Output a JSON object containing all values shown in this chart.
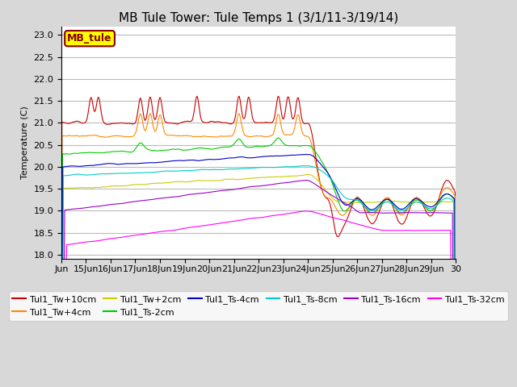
{
  "title": "MB Tule Tower: Tule Temps 1 (3/1/11-3/19/14)",
  "ylabel": "Temperature (C)",
  "ylim": [
    17.9,
    23.2
  ],
  "yticks": [
    18.0,
    18.5,
    19.0,
    19.5,
    20.0,
    20.5,
    21.0,
    21.5,
    22.0,
    22.5,
    23.0
  ],
  "xtick_labels": [
    "Jun",
    "15Jun",
    "16Jun",
    "17Jun",
    "18Jun",
    "19Jun",
    "20Jun",
    "21Jun",
    "22Jun",
    "23Jun",
    "24Jun",
    "25Jun",
    "26Jun",
    "27Jun",
    "28Jun",
    "29Jun",
    "30"
  ],
  "legend_box_label": "MB_tule",
  "legend_box_color": "#ffff00",
  "legend_box_border": "#880000",
  "series": [
    {
      "label": "Tul1_Tw+10cm",
      "color": "#cc0000"
    },
    {
      "label": "Tul1_Tw+4cm",
      "color": "#ff8800"
    },
    {
      "label": "Tul1_Tw+2cm",
      "color": "#cccc00"
    },
    {
      "label": "Tul1_Ts-2cm",
      "color": "#00cc00"
    },
    {
      "label": "Tul1_Ts-4cm",
      "color": "#0000cc"
    },
    {
      "label": "Tul1_Ts-8cm",
      "color": "#00cccc"
    },
    {
      "label": "Tul1_Ts-16cm",
      "color": "#9900cc"
    },
    {
      "label": "Tul1_Ts-32cm",
      "color": "#ff00ff"
    }
  ],
  "bg_color": "#d8d8d8",
  "plot_bg_color": "#ffffff",
  "grid_color": "#bbbbbb",
  "title_fontsize": 11,
  "tick_fontsize": 8,
  "legend_fontsize": 8
}
